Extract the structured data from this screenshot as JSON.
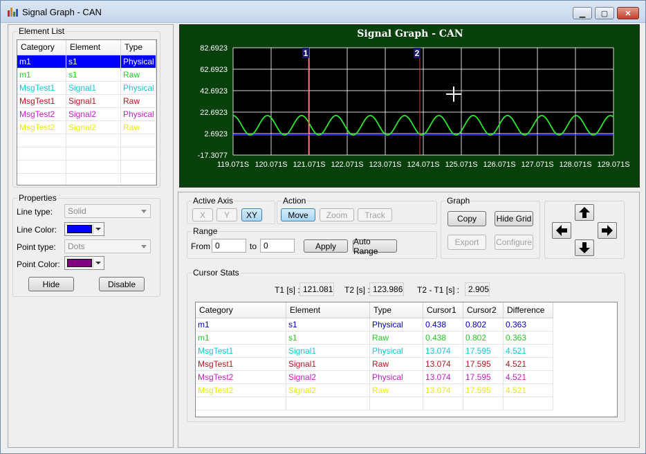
{
  "window": {
    "title": "Signal Graph - CAN",
    "controls": {
      "minimize": "▁",
      "maximize": "▢",
      "close": "✕"
    }
  },
  "element_list": {
    "label": "Element List",
    "columns": [
      "Category",
      "Element",
      "Type"
    ],
    "rows": [
      {
        "category": "m1",
        "element": "s1",
        "type": "Physical",
        "color": "#ffffff",
        "selected": true
      },
      {
        "category": "m1",
        "element": "s1",
        "type": "Raw",
        "color": "#22cc22",
        "selected": false
      },
      {
        "category": "MsgTest1",
        "element": "Signal1",
        "type": "Physical",
        "color": "#11c8d8",
        "selected": false
      },
      {
        "category": "MsgTest1",
        "element": "Signal1",
        "type": "Raw",
        "color": "#b8141e",
        "selected": false
      },
      {
        "category": "MsgTest2",
        "element": "Signal2",
        "type": "Physical",
        "color": "#c21ec2",
        "selected": false
      },
      {
        "category": "MsgTest2",
        "element": "Signal2",
        "type": "Raw",
        "color": "#e8e81a",
        "selected": false
      }
    ],
    "selected_bg": "#0000ff"
  },
  "properties": {
    "label": "Properties",
    "line_type_label": "Line type:",
    "line_type_value": "Solid",
    "line_color_label": "Line Color:",
    "line_color": "#0000ff",
    "point_type_label": "Point type:",
    "point_type_value": "Dots",
    "point_color_label": "Point Color:",
    "point_color": "#800080",
    "hide_label": "Hide",
    "disable_label": "Disable"
  },
  "graph": {
    "title": "Signal Graph - CAN",
    "y_ticks": [
      "82.6923",
      "62.6923",
      "42.6923",
      "22.6923",
      "2.6923",
      "-17.3077"
    ],
    "x_ticks": [
      "119.071S",
      "120.071S",
      "121.071S",
      "122.071S",
      "123.071S",
      "124.071S",
      "125.071S",
      "126.071S",
      "127.071S",
      "128.071S",
      "129.071S"
    ],
    "cursor1_label": "1",
    "cursor2_label": "2",
    "background": "#08400b",
    "plot_bg": "#000000",
    "grid_color": "#ffffff",
    "cursor_color": "#ff2a2a",
    "series_color": "#2ee82e",
    "baseline_color": "#2a2aff"
  },
  "controls": {
    "active_axis_label": "Active Axis",
    "axis_x": "X",
    "axis_y": "Y",
    "axis_xy": "XY",
    "action_label": "Action",
    "move": "Move",
    "zoom": "Zoom",
    "track": "Track",
    "range_label": "Range",
    "from_label": "From",
    "from_value": "0",
    "to_label": "to",
    "to_value": "0",
    "apply": "Apply",
    "auto_range": "Auto Range",
    "graph_label": "Graph",
    "copy": "Copy",
    "hide_grid": "Hide Grid",
    "export": "Export",
    "configure": "Configure"
  },
  "cursor_stats": {
    "label": "Cursor Stats",
    "t1_label": "T1 [s] :",
    "t1_value": "121.081",
    "t2_label": "T2 [s] :",
    "t2_value": "123.986",
    "diff_label": "T2 - T1 [s] :",
    "diff_value": "2.905",
    "columns": [
      "Category",
      "Element",
      "Type",
      "Cursor1",
      "Cursor2",
      "Difference"
    ],
    "rows": [
      {
        "category": "m1",
        "element": "s1",
        "type": "Physical",
        "cursor1": "0.438",
        "cursor2": "0.802",
        "difference": "0.363",
        "color": "#0000c8"
      },
      {
        "category": "m1",
        "element": "s1",
        "type": "Raw",
        "cursor1": "0.438",
        "cursor2": "0.802",
        "difference": "0.363",
        "color": "#22cc22"
      },
      {
        "category": "MsgTest1",
        "element": "Signal1",
        "type": "Physical",
        "cursor1": "13.074",
        "cursor2": "17.595",
        "difference": "4.521",
        "color": "#11c8d8"
      },
      {
        "category": "MsgTest1",
        "element": "Signal1",
        "type": "Raw",
        "cursor1": "13.074",
        "cursor2": "17.595",
        "difference": "4.521",
        "color": "#b8141e"
      },
      {
        "category": "MsgTest2",
        "element": "Signal2",
        "type": "Physical",
        "cursor1": "13.074",
        "cursor2": "17.595",
        "difference": "4.521",
        "color": "#c21ec2"
      },
      {
        "category": "MsgTest2",
        "element": "Signal2",
        "type": "Raw",
        "cursor1": "13.074",
        "cursor2": "17.595",
        "difference": "4.521",
        "color": "#e8e81a"
      }
    ]
  }
}
